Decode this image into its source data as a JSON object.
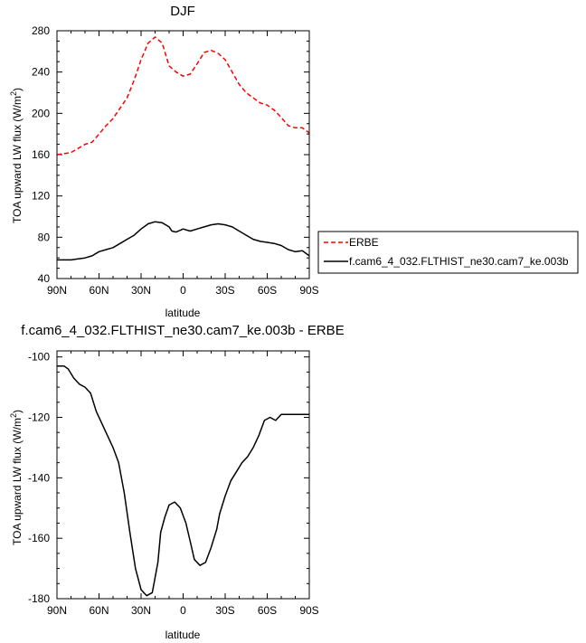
{
  "chart_data": [
    {
      "type": "line",
      "title": "DJF",
      "xlabel": "latitude",
      "ylabel": "TOA upward LW flux (W/m",
      "ylabel_sup": "2",
      "ylabel_close": ")",
      "x_ticks": [
        "90N",
        "60N",
        "30N",
        "0",
        "30S",
        "60S",
        "90S"
      ],
      "x_tick_values": [
        90,
        60,
        30,
        0,
        -30,
        -60,
        -90
      ],
      "xlim": [
        90,
        -90
      ],
      "ylim": [
        40,
        280
      ],
      "y_ticks": [
        40,
        80,
        120,
        160,
        200,
        240,
        280
      ],
      "legend_position": "right",
      "series": [
        {
          "name": "ERBE",
          "color": "#ff0000",
          "dash": "dashed",
          "x": [
            90,
            80,
            75,
            70,
            65,
            60,
            55,
            50,
            45,
            40,
            35,
            30,
            25,
            20,
            15,
            12,
            10,
            5,
            0,
            -5,
            -10,
            -15,
            -20,
            -25,
            -30,
            -35,
            -40,
            -45,
            -50,
            -55,
            -60,
            -65,
            -70,
            -75,
            -80,
            -85,
            -90
          ],
          "y": [
            160,
            162,
            166,
            170,
            172,
            180,
            188,
            195,
            205,
            215,
            232,
            252,
            268,
            274,
            268,
            255,
            246,
            240,
            236,
            238,
            248,
            259,
            261,
            258,
            252,
            240,
            228,
            220,
            215,
            210,
            208,
            203,
            196,
            188,
            186,
            186,
            181
          ]
        },
        {
          "name": "f.cam6_4_032.FLTHIST_ne30.cam7_ke.003b",
          "color": "#000000",
          "dash": "solid",
          "x": [
            90,
            85,
            80,
            75,
            70,
            65,
            60,
            55,
            50,
            45,
            40,
            35,
            30,
            25,
            20,
            15,
            10,
            8,
            5,
            0,
            -5,
            -10,
            -15,
            -20,
            -25,
            -30,
            -35,
            -40,
            -45,
            -50,
            -55,
            -60,
            -65,
            -70,
            -75,
            -80,
            -85,
            -90
          ],
          "y": [
            58,
            58,
            58,
            59,
            60,
            62,
            66,
            68,
            70,
            74,
            78,
            82,
            88,
            93,
            95,
            94,
            90,
            86,
            85,
            88,
            86,
            88,
            90,
            92,
            93,
            92,
            90,
            86,
            82,
            78,
            76,
            75,
            74,
            72,
            68,
            66,
            67,
            62
          ]
        }
      ]
    },
    {
      "type": "line",
      "title": "f.cam6_4_032.FLTHIST_ne30.cam7_ke.003b - ERBE",
      "xlabel": "latitude",
      "ylabel": "TOA upward LW flux (W/m",
      "ylabel_sup": "2",
      "ylabel_close": ")",
      "x_ticks": [
        "90N",
        "60N",
        "30N",
        "0",
        "30S",
        "60S",
        "90S"
      ],
      "x_tick_values": [
        90,
        60,
        30,
        0,
        -30,
        -60,
        -90
      ],
      "xlim": [
        90,
        -90
      ],
      "ylim": [
        -180,
        -98
      ],
      "y_ticks": [
        -100,
        -120,
        -140,
        -160,
        -180
      ],
      "series": [
        {
          "color": "#000000",
          "x": [
            90,
            85,
            82,
            78,
            74,
            70,
            66,
            62,
            58,
            54,
            50,
            46,
            42,
            38,
            34,
            30,
            26,
            22,
            18,
            16,
            13,
            10,
            6,
            2,
            -2,
            -5,
            -8,
            -12,
            -16,
            -20,
            -24,
            -26,
            -30,
            -34,
            -38,
            -42,
            -46,
            -50,
            -54,
            -58,
            -62,
            -66,
            -70,
            -74,
            -78,
            -82,
            -86,
            -90
          ],
          "y": [
            -103,
            -103,
            -104,
            -107,
            -109,
            -110,
            -112,
            -118,
            -122,
            -126,
            -130,
            -135,
            -145,
            -158,
            -170,
            -177,
            -179,
            -178,
            -168,
            -158,
            -153,
            -149,
            -148,
            -150,
            -155,
            -161,
            -167,
            -169,
            -168,
            -163,
            -157,
            -152,
            -146,
            -141,
            -138,
            -135,
            -133,
            -130,
            -126,
            -121,
            -120,
            -121,
            -119,
            -119,
            -119,
            -119,
            -119,
            -119
          ]
        }
      ]
    }
  ]
}
